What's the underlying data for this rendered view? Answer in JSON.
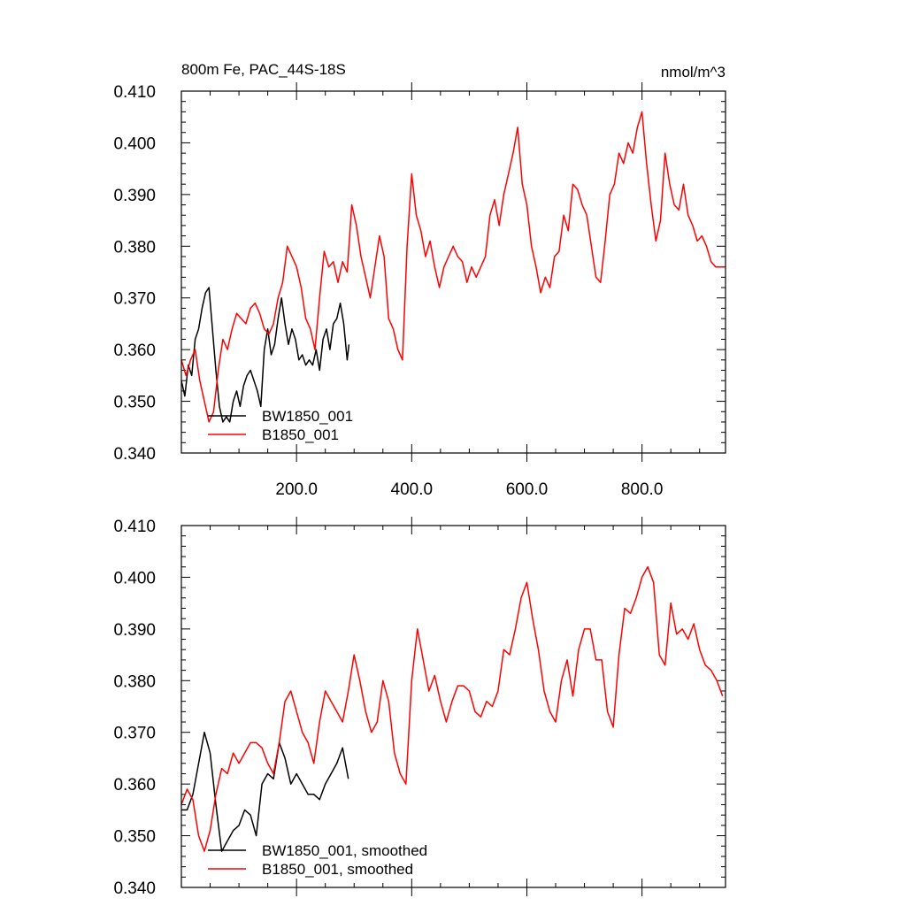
{
  "colors": {
    "BW1850_001": "#000000",
    "B1850_001": "#ff0000"
  },
  "chart_data": [
    {
      "type": "line",
      "title": "800m Fe, PAC_44S-18S",
      "units": "nmol/m^3",
      "xlim": [
        0,
        945
      ],
      "ylim": [
        0.34,
        0.41
      ],
      "x_ticks": [
        200,
        400,
        600,
        800
      ],
      "x_tick_labels": [
        "200.0",
        "400.0",
        "600.0",
        "800.0"
      ],
      "y_ticks": [
        0.34,
        0.35,
        0.36,
        0.37,
        0.38,
        0.39,
        0.4,
        0.41
      ],
      "y_tick_labels": [
        "0.340",
        "0.350",
        "0.360",
        "0.370",
        "0.380",
        "0.390",
        "0.400",
        "0.410"
      ],
      "series": [
        {
          "name": "BW1850_001",
          "color": "#000000",
          "x": [
            0,
            6,
            12,
            18,
            24,
            30,
            36,
            42,
            48,
            54,
            60,
            66,
            72,
            78,
            84,
            90,
            96,
            102,
            108,
            114,
            120,
            126,
            132,
            138,
            144,
            150,
            156,
            162,
            168,
            174,
            180,
            186,
            192,
            198,
            204,
            210,
            216,
            222,
            228,
            234,
            240,
            246,
            252,
            258,
            264,
            270,
            276,
            282,
            288,
            291
          ],
          "values": [
            0.354,
            0.351,
            0.357,
            0.355,
            0.362,
            0.364,
            0.368,
            0.371,
            0.372,
            0.364,
            0.356,
            0.349,
            0.346,
            0.347,
            0.346,
            0.35,
            0.352,
            0.349,
            0.353,
            0.355,
            0.356,
            0.354,
            0.352,
            0.349,
            0.36,
            0.364,
            0.359,
            0.361,
            0.366,
            0.37,
            0.365,
            0.361,
            0.364,
            0.362,
            0.358,
            0.359,
            0.357,
            0.358,
            0.357,
            0.36,
            0.356,
            0.362,
            0.364,
            0.36,
            0.365,
            0.366,
            0.369,
            0.365,
            0.358,
            0.361
          ]
        },
        {
          "name": "B1850_001",
          "color": "#ff0000",
          "x": [
            0,
            8,
            16,
            24,
            32,
            40,
            48,
            56,
            64,
            72,
            80,
            88,
            96,
            104,
            112,
            120,
            128,
            136,
            144,
            152,
            160,
            168,
            176,
            184,
            192,
            200,
            208,
            216,
            224,
            232,
            240,
            248,
            256,
            264,
            272,
            280,
            288,
            296,
            304,
            312,
            320,
            328,
            336,
            344,
            352,
            360,
            368,
            376,
            384,
            392,
            400,
            408,
            416,
            424,
            432,
            440,
            448,
            456,
            464,
            472,
            480,
            488,
            496,
            504,
            512,
            520,
            528,
            536,
            544,
            552,
            560,
            568,
            576,
            584,
            592,
            600,
            608,
            616,
            624,
            632,
            640,
            648,
            656,
            664,
            672,
            680,
            688,
            696,
            704,
            712,
            720,
            728,
            736,
            744,
            752,
            760,
            768,
            776,
            784,
            792,
            800,
            808,
            816,
            824,
            832,
            840,
            848,
            856,
            864,
            872,
            880,
            888,
            896,
            904,
            912,
            920,
            928,
            936,
            944
          ],
          "values": [
            0.358,
            0.355,
            0.358,
            0.36,
            0.354,
            0.35,
            0.346,
            0.348,
            0.356,
            0.362,
            0.36,
            0.364,
            0.367,
            0.366,
            0.365,
            0.368,
            0.369,
            0.367,
            0.364,
            0.363,
            0.365,
            0.37,
            0.373,
            0.38,
            0.378,
            0.376,
            0.372,
            0.366,
            0.364,
            0.36,
            0.37,
            0.379,
            0.376,
            0.377,
            0.373,
            0.377,
            0.375,
            0.388,
            0.384,
            0.378,
            0.374,
            0.37,
            0.376,
            0.382,
            0.378,
            0.366,
            0.364,
            0.36,
            0.358,
            0.38,
            0.394,
            0.386,
            0.383,
            0.378,
            0.381,
            0.376,
            0.372,
            0.376,
            0.378,
            0.38,
            0.378,
            0.377,
            0.373,
            0.376,
            0.374,
            0.376,
            0.378,
            0.386,
            0.389,
            0.384,
            0.39,
            0.394,
            0.398,
            0.403,
            0.392,
            0.388,
            0.38,
            0.376,
            0.371,
            0.374,
            0.372,
            0.378,
            0.379,
            0.386,
            0.383,
            0.392,
            0.391,
            0.388,
            0.386,
            0.38,
            0.374,
            0.373,
            0.381,
            0.39,
            0.392,
            0.398,
            0.396,
            0.4,
            0.398,
            0.403,
            0.406,
            0.396,
            0.388,
            0.381,
            0.385,
            0.398,
            0.392,
            0.388,
            0.387,
            0.392,
            0.386,
            0.384,
            0.381,
            0.382,
            0.38,
            0.377,
            0.376,
            0.376,
            0.376
          ]
        }
      ]
    },
    {
      "type": "line",
      "title": "",
      "xlim": [
        0,
        945
      ],
      "ylim": [
        0.34,
        0.41
      ],
      "x_ticks": [
        200,
        400,
        600,
        800
      ],
      "y_ticks": [
        0.34,
        0.35,
        0.36,
        0.37,
        0.38,
        0.39,
        0.4,
        0.41
      ],
      "y_tick_labels": [
        "0.340",
        "0.350",
        "0.360",
        "0.370",
        "0.380",
        "0.390",
        "0.400",
        "0.410"
      ],
      "series": [
        {
          "name": "BW1850_001, smoothed",
          "color": "#000000",
          "x": [
            0,
            10,
            20,
            30,
            40,
            50,
            60,
            70,
            80,
            90,
            100,
            110,
            120,
            130,
            140,
            150,
            160,
            170,
            180,
            190,
            200,
            210,
            220,
            230,
            240,
            250,
            260,
            270,
            280,
            290
          ],
          "values": [
            0.355,
            0.355,
            0.358,
            0.364,
            0.37,
            0.366,
            0.356,
            0.347,
            0.349,
            0.351,
            0.352,
            0.355,
            0.354,
            0.35,
            0.36,
            0.362,
            0.361,
            0.368,
            0.365,
            0.36,
            0.362,
            0.36,
            0.358,
            0.358,
            0.357,
            0.36,
            0.362,
            0.364,
            0.367,
            0.361
          ]
        },
        {
          "name": "B1850_001, smoothed",
          "color": "#ff0000",
          "x": [
            0,
            10,
            20,
            30,
            40,
            50,
            60,
            70,
            80,
            90,
            100,
            110,
            120,
            130,
            140,
            150,
            160,
            170,
            180,
            190,
            200,
            210,
            220,
            230,
            240,
            250,
            260,
            270,
            280,
            290,
            300,
            310,
            320,
            330,
            340,
            350,
            360,
            370,
            380,
            390,
            400,
            410,
            420,
            430,
            440,
            450,
            460,
            470,
            480,
            490,
            500,
            510,
            520,
            530,
            540,
            550,
            560,
            570,
            580,
            590,
            600,
            610,
            620,
            630,
            640,
            650,
            660,
            670,
            680,
            690,
            700,
            710,
            720,
            730,
            740,
            750,
            760,
            770,
            780,
            790,
            800,
            810,
            820,
            830,
            840,
            850,
            860,
            870,
            880,
            890,
            900,
            910,
            920,
            930,
            940
          ],
          "values": [
            0.356,
            0.359,
            0.357,
            0.35,
            0.347,
            0.351,
            0.358,
            0.363,
            0.362,
            0.366,
            0.364,
            0.366,
            0.368,
            0.368,
            0.367,
            0.364,
            0.362,
            0.368,
            0.376,
            0.378,
            0.374,
            0.37,
            0.368,
            0.364,
            0.372,
            0.378,
            0.376,
            0.374,
            0.372,
            0.378,
            0.385,
            0.38,
            0.374,
            0.37,
            0.372,
            0.38,
            0.376,
            0.366,
            0.362,
            0.36,
            0.38,
            0.39,
            0.384,
            0.378,
            0.381,
            0.376,
            0.372,
            0.376,
            0.379,
            0.379,
            0.378,
            0.374,
            0.373,
            0.376,
            0.375,
            0.378,
            0.386,
            0.385,
            0.39,
            0.396,
            0.399,
            0.392,
            0.386,
            0.378,
            0.374,
            0.372,
            0.38,
            0.384,
            0.377,
            0.386,
            0.39,
            0.39,
            0.384,
            0.384,
            0.374,
            0.371,
            0.385,
            0.394,
            0.393,
            0.396,
            0.4,
            0.402,
            0.399,
            0.385,
            0.383,
            0.395,
            0.389,
            0.39,
            0.388,
            0.391,
            0.386,
            0.383,
            0.382,
            0.38,
            0.377
          ]
        }
      ]
    }
  ]
}
